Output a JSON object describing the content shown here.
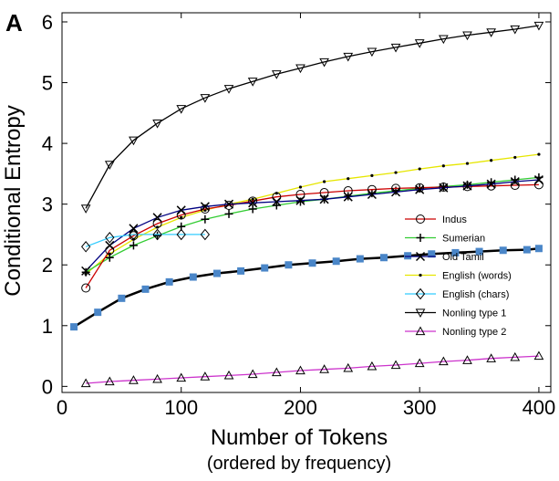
{
  "chart_data": {
    "type": "line",
    "panel_label": "A",
    "xlabel": "Number of Tokens",
    "xlabel_sub": "(ordered by frequency)",
    "ylabel": "Conditional Entropy",
    "xlim": [
      0,
      410
    ],
    "ylim": [
      -0.1,
      6.15
    ],
    "xticks": [
      0,
      100,
      200,
      300,
      400
    ],
    "yticks": [
      0,
      1,
      2,
      3,
      4,
      5,
      6
    ],
    "legend_position": "center-right",
    "series": [
      {
        "name": "Nonling type 1",
        "color": "#000000",
        "marker": "triangle-down",
        "x": [
          20,
          40,
          60,
          80,
          100,
          120,
          140,
          160,
          180,
          200,
          220,
          240,
          260,
          280,
          300,
          320,
          340,
          360,
          380,
          400
        ],
        "y": [
          2.93,
          3.65,
          4.05,
          4.33,
          4.57,
          4.75,
          4.9,
          5.02,
          5.14,
          5.24,
          5.34,
          5.43,
          5.51,
          5.58,
          5.65,
          5.72,
          5.78,
          5.83,
          5.88,
          5.94
        ]
      },
      {
        "name": "English (words)",
        "color": "#e6e600",
        "marker": "dot",
        "x": [
          20,
          40,
          60,
          80,
          100,
          120,
          140,
          160,
          180,
          200,
          220,
          240,
          260,
          280,
          300,
          320,
          340,
          360,
          380,
          400
        ],
        "y": [
          1.85,
          2.18,
          2.42,
          2.62,
          2.78,
          2.9,
          3.0,
          3.08,
          3.18,
          3.28,
          3.37,
          3.42,
          3.47,
          3.52,
          3.58,
          3.63,
          3.67,
          3.72,
          3.77,
          3.82
        ]
      },
      {
        "name": "Sumerian",
        "color": "#33cc33",
        "marker": "plus",
        "x": [
          20,
          40,
          60,
          80,
          100,
          120,
          140,
          160,
          180,
          200,
          220,
          240,
          260,
          280,
          300,
          320,
          340,
          360,
          380,
          400
        ],
        "y": [
          1.88,
          2.12,
          2.32,
          2.48,
          2.63,
          2.75,
          2.84,
          2.92,
          2.98,
          3.04,
          3.08,
          3.13,
          3.18,
          3.22,
          3.26,
          3.29,
          3.32,
          3.36,
          3.4,
          3.44
        ]
      },
      {
        "name": "Indus",
        "color": "#cc0000",
        "marker": "circle",
        "x": [
          20,
          40,
          60,
          80,
          100,
          120,
          140,
          160,
          180,
          200,
          220,
          240,
          260,
          280,
          300,
          320,
          340,
          360,
          380,
          400
        ],
        "y": [
          1.62,
          2.24,
          2.48,
          2.68,
          2.82,
          2.92,
          2.98,
          3.05,
          3.12,
          3.16,
          3.19,
          3.22,
          3.24,
          3.26,
          3.27,
          3.28,
          3.29,
          3.3,
          3.31,
          3.32
        ]
      },
      {
        "name": "Old Tamil",
        "color": "#000080",
        "marker": "cross",
        "x": [
          20,
          40,
          60,
          80,
          100,
          120,
          140,
          160,
          180,
          200,
          220,
          240,
          260,
          280,
          300,
          320,
          340,
          360,
          380,
          400
        ],
        "y": [
          1.9,
          2.32,
          2.6,
          2.78,
          2.9,
          2.96,
          3.0,
          3.02,
          3.04,
          3.06,
          3.08,
          3.12,
          3.16,
          3.2,
          3.24,
          3.27,
          3.3,
          3.33,
          3.37,
          3.4
        ]
      },
      {
        "name": "English (chars)",
        "color": "#33ccff",
        "marker": "diamond",
        "x": [
          20,
          40,
          60,
          80,
          100,
          120
        ],
        "y": [
          2.3,
          2.45,
          2.5,
          2.5,
          2.5,
          2.5
        ]
      },
      {
        "name": "Nonling type 2",
        "color": "#cc33cc",
        "marker": "triangle-up",
        "x": [
          20,
          40,
          60,
          80,
          100,
          120,
          140,
          160,
          180,
          200,
          220,
          240,
          260,
          280,
          300,
          320,
          340,
          360,
          380,
          400
        ],
        "y": [
          0.05,
          0.08,
          0.1,
          0.12,
          0.14,
          0.16,
          0.18,
          0.2,
          0.23,
          0.26,
          0.28,
          0.3,
          0.33,
          0.35,
          0.38,
          0.41,
          0.43,
          0.46,
          0.48,
          0.5
        ]
      },
      {
        "name": "Blue squares",
        "color": "#000000",
        "marker": "square",
        "marker_color": "#4a86c8",
        "line_width": 2.5,
        "legend": false,
        "x": [
          10,
          30,
          50,
          70,
          90,
          110,
          130,
          150,
          170,
          190,
          210,
          230,
          250,
          270,
          290,
          310,
          330,
          350,
          370,
          390,
          400
        ],
        "y": [
          0.98,
          1.22,
          1.45,
          1.6,
          1.72,
          1.8,
          1.86,
          1.9,
          1.95,
          2.0,
          2.03,
          2.06,
          2.1,
          2.12,
          2.15,
          2.18,
          2.2,
          2.22,
          2.24,
          2.25,
          2.27
        ]
      }
    ],
    "legend_entries": [
      {
        "name": "Indus",
        "color": "#cc0000",
        "marker": "circle"
      },
      {
        "name": "Sumerian",
        "color": "#33cc33",
        "marker": "plus"
      },
      {
        "name": "Old Tamil",
        "color": "#000080",
        "marker": "cross"
      },
      {
        "name": "English (words)",
        "color": "#e6e600",
        "marker": "dot"
      },
      {
        "name": "English (chars)",
        "color": "#33ccff",
        "marker": "diamond"
      },
      {
        "name": "Nonling type 1",
        "color": "#000000",
        "marker": "triangle-down"
      },
      {
        "name": "Nonling type 2",
        "color": "#cc33cc",
        "marker": "triangle-up"
      }
    ]
  }
}
